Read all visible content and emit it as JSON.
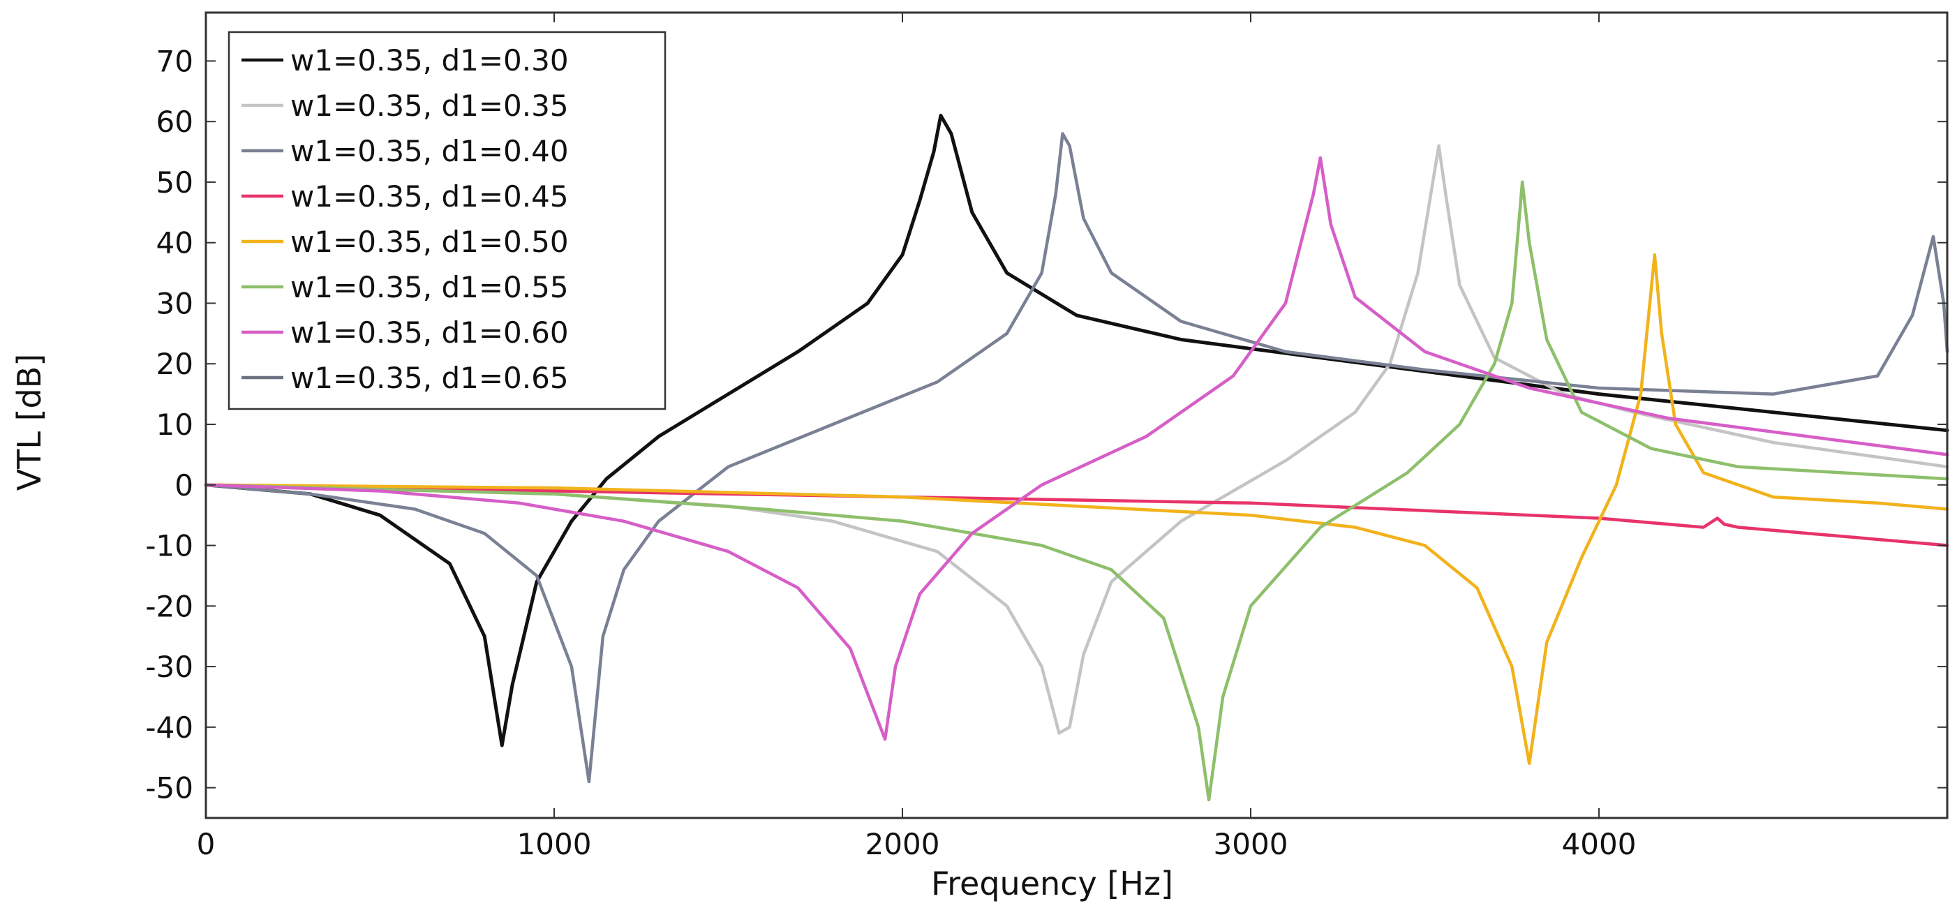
{
  "chart_data": {
    "type": "line",
    "title": "",
    "xlabel": "Frequency [Hz]",
    "ylabel": "VTL [dB]",
    "xlim": [
      0,
      5000
    ],
    "ylim": [
      -55,
      78
    ],
    "x_ticks": [
      0,
      1000,
      2000,
      3000,
      4000
    ],
    "x_tick_labels": [
      "0",
      "1000",
      "2000",
      "3000",
      "4000"
    ],
    "y_ticks": [
      70,
      60,
      50,
      40,
      30,
      20,
      10,
      0,
      -10,
      -20,
      -30,
      -40,
      -50
    ],
    "y_tick_labels": [
      "70",
      "60",
      "50",
      "40",
      "30",
      "20",
      "10",
      "0",
      "-10",
      "-20",
      "-30",
      "-40",
      "-50"
    ],
    "grid": false,
    "legend_position": "top-left",
    "series": [
      {
        "name": "w1=0.35, d1=0.30",
        "color": "#111111",
        "x": [
          0,
          300,
          500,
          700,
          800,
          850,
          880,
          950,
          1050,
          1150,
          1300,
          1500,
          1700,
          1900,
          2000,
          2050,
          2090,
          2110,
          2140,
          2200,
          2300,
          2500,
          2800,
          3200,
          3600,
          4000,
          4500,
          5000
        ],
        "y": [
          0,
          -1.5,
          -5,
          -13,
          -25,
          -43,
          -33,
          -16,
          -6,
          1,
          8,
          15,
          22,
          30,
          38,
          47,
          55,
          61,
          58,
          45,
          35,
          28,
          24,
          21,
          18,
          15,
          12,
          9
        ]
      },
      {
        "name": "w1=0.35, d1=0.35",
        "color": "#c4c4c4",
        "x": [
          0,
          1000,
          1500,
          1800,
          2100,
          2300,
          2400,
          2450,
          2480,
          2520,
          2600,
          2800,
          3100,
          3300,
          3400,
          3480,
          3540,
          3560,
          3600,
          3700,
          3900,
          4100,
          4500,
          5000
        ],
        "y": [
          0,
          -1.5,
          -3.5,
          -6,
          -11,
          -20,
          -30,
          -41,
          -40,
          -28,
          -16,
          -6,
          4,
          12,
          20,
          35,
          56,
          48,
          33,
          21,
          15,
          12,
          7,
          3
        ]
      },
      {
        "name": "w1=0.35, d1=0.40",
        "color": "#7a8194",
        "x": [
          0,
          300,
          600,
          800,
          950,
          1050,
          1100,
          1140,
          1200,
          1300,
          1500,
          1800,
          2100,
          2300,
          2400,
          2440,
          2460,
          2480,
          2520,
          2600,
          2800,
          3100,
          3500,
          4000,
          4500,
          4800,
          4900,
          4960,
          4990,
          5000
        ],
        "y": [
          0,
          -1.5,
          -4,
          -8,
          -15,
          -30,
          -49,
          -25,
          -14,
          -6,
          3,
          10,
          17,
          25,
          35,
          48,
          58,
          56,
          44,
          35,
          27,
          22,
          19,
          16,
          15,
          18,
          28,
          41,
          30,
          22
        ]
      },
      {
        "name": "w1=0.35, d1=0.45",
        "color": "#e8336a",
        "x": [
          0,
          1000,
          2000,
          3000,
          4000,
          4300,
          4340,
          4360,
          4400,
          4600,
          5000
        ],
        "y": [
          0,
          -1,
          -2,
          -3,
          -5.5,
          -7,
          -5.5,
          -6.5,
          -7,
          -8,
          -10
        ]
      },
      {
        "name": "w1=0.35, d1=0.50",
        "color": "#f2b21b",
        "x": [
          0,
          1000,
          2000,
          2500,
          3000,
          3300,
          3500,
          3650,
          3750,
          3800,
          3850,
          3950,
          4050,
          4120,
          4160,
          4180,
          4220,
          4300,
          4500,
          4800,
          5000
        ],
        "y": [
          0,
          -0.5,
          -2,
          -3.5,
          -5,
          -7,
          -10,
          -17,
          -30,
          -46,
          -26,
          -12,
          0,
          15,
          38,
          25,
          10,
          2,
          -2,
          -3,
          -4
        ]
      },
      {
        "name": "w1=0.35, d1=0.55",
        "color": "#8ebf6b",
        "x": [
          0,
          1000,
          1600,
          2000,
          2400,
          2600,
          2750,
          2850,
          2880,
          2920,
          3000,
          3200,
          3450,
          3600,
          3700,
          3750,
          3780,
          3800,
          3850,
          3950,
          4150,
          4400,
          5000
        ],
        "y": [
          0,
          -1.5,
          -4,
          -6,
          -10,
          -14,
          -22,
          -40,
          -52,
          -35,
          -20,
          -7,
          2,
          10,
          20,
          30,
          50,
          40,
          24,
          12,
          6,
          3,
          1
        ]
      },
      {
        "name": "w1=0.35, d1=0.60",
        "color": "#d65ec7",
        "x": [
          0,
          500,
          900,
          1200,
          1500,
          1700,
          1850,
          1930,
          1950,
          1980,
          2050,
          2200,
          2400,
          2700,
          2950,
          3100,
          3180,
          3200,
          3230,
          3300,
          3500,
          3800,
          4200,
          5000
        ],
        "y": [
          0,
          -1,
          -3,
          -6,
          -11,
          -17,
          -27,
          -39,
          -42,
          -30,
          -18,
          -8,
          0,
          8,
          18,
          30,
          48,
          54,
          43,
          31,
          22,
          16,
          11,
          5
        ]
      },
      {
        "name": "w1=0.35, d1=0.65",
        "color": "#6e7180",
        "x": [],
        "y": []
      }
    ]
  }
}
